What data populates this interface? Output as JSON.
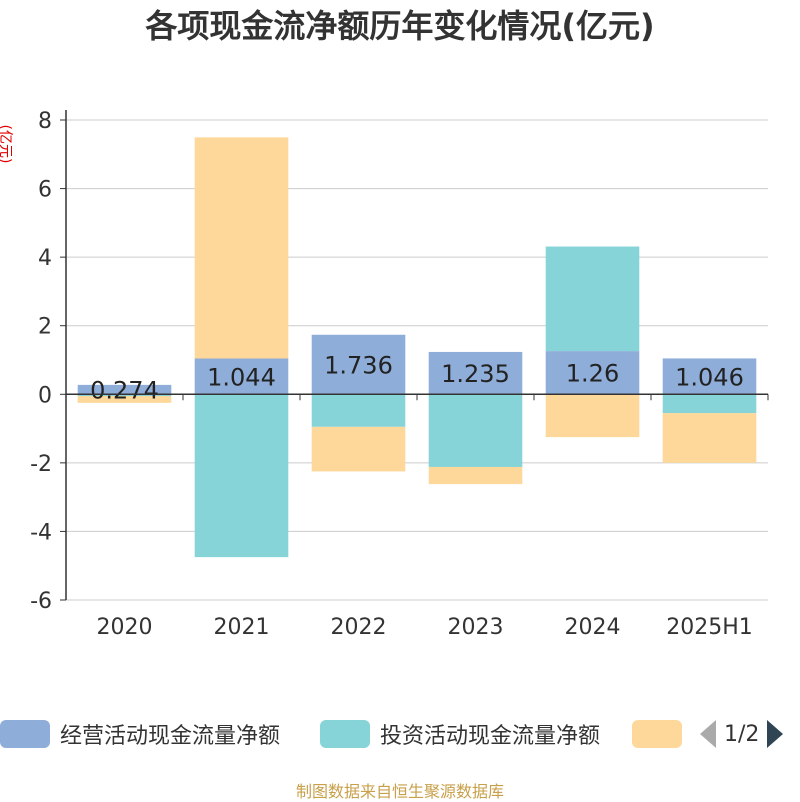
{
  "chart_data": {
    "type": "bar",
    "stacked": true,
    "title": "各项现金流净额历年变化情况(亿元)",
    "ylabel": "(亿元)",
    "categories": [
      "2020",
      "2021",
      "2022",
      "2023",
      "2024",
      "2025H1"
    ],
    "ylim": [
      -6,
      8
    ],
    "yticks": [
      8,
      6,
      4,
      2,
      0,
      -2,
      -4,
      -6
    ],
    "grid": true,
    "series": [
      {
        "name": "经营活动现金流量净额",
        "color": "#8fadd9",
        "values": [
          0.274,
          1.044,
          1.736,
          1.235,
          1.26,
          1.046
        ],
        "labels": [
          "0.274",
          "1.044",
          "1.736",
          "1.235",
          "1.26",
          "1.046"
        ]
      },
      {
        "name": "投资活动现金流量净额",
        "color": "#86d4d8",
        "values": [
          -0.05,
          -4.75,
          -0.95,
          -2.12,
          3.05,
          -0.55
        ]
      },
      {
        "name": "",
        "color": "#fdd89a",
        "values": [
          -0.2,
          6.45,
          -1.3,
          -0.5,
          -1.25,
          -1.45
        ]
      }
    ],
    "legend_position": "bottom"
  },
  "legend": {
    "pager": "1/2"
  },
  "footer": "制图数据来自恒生聚源数据库"
}
